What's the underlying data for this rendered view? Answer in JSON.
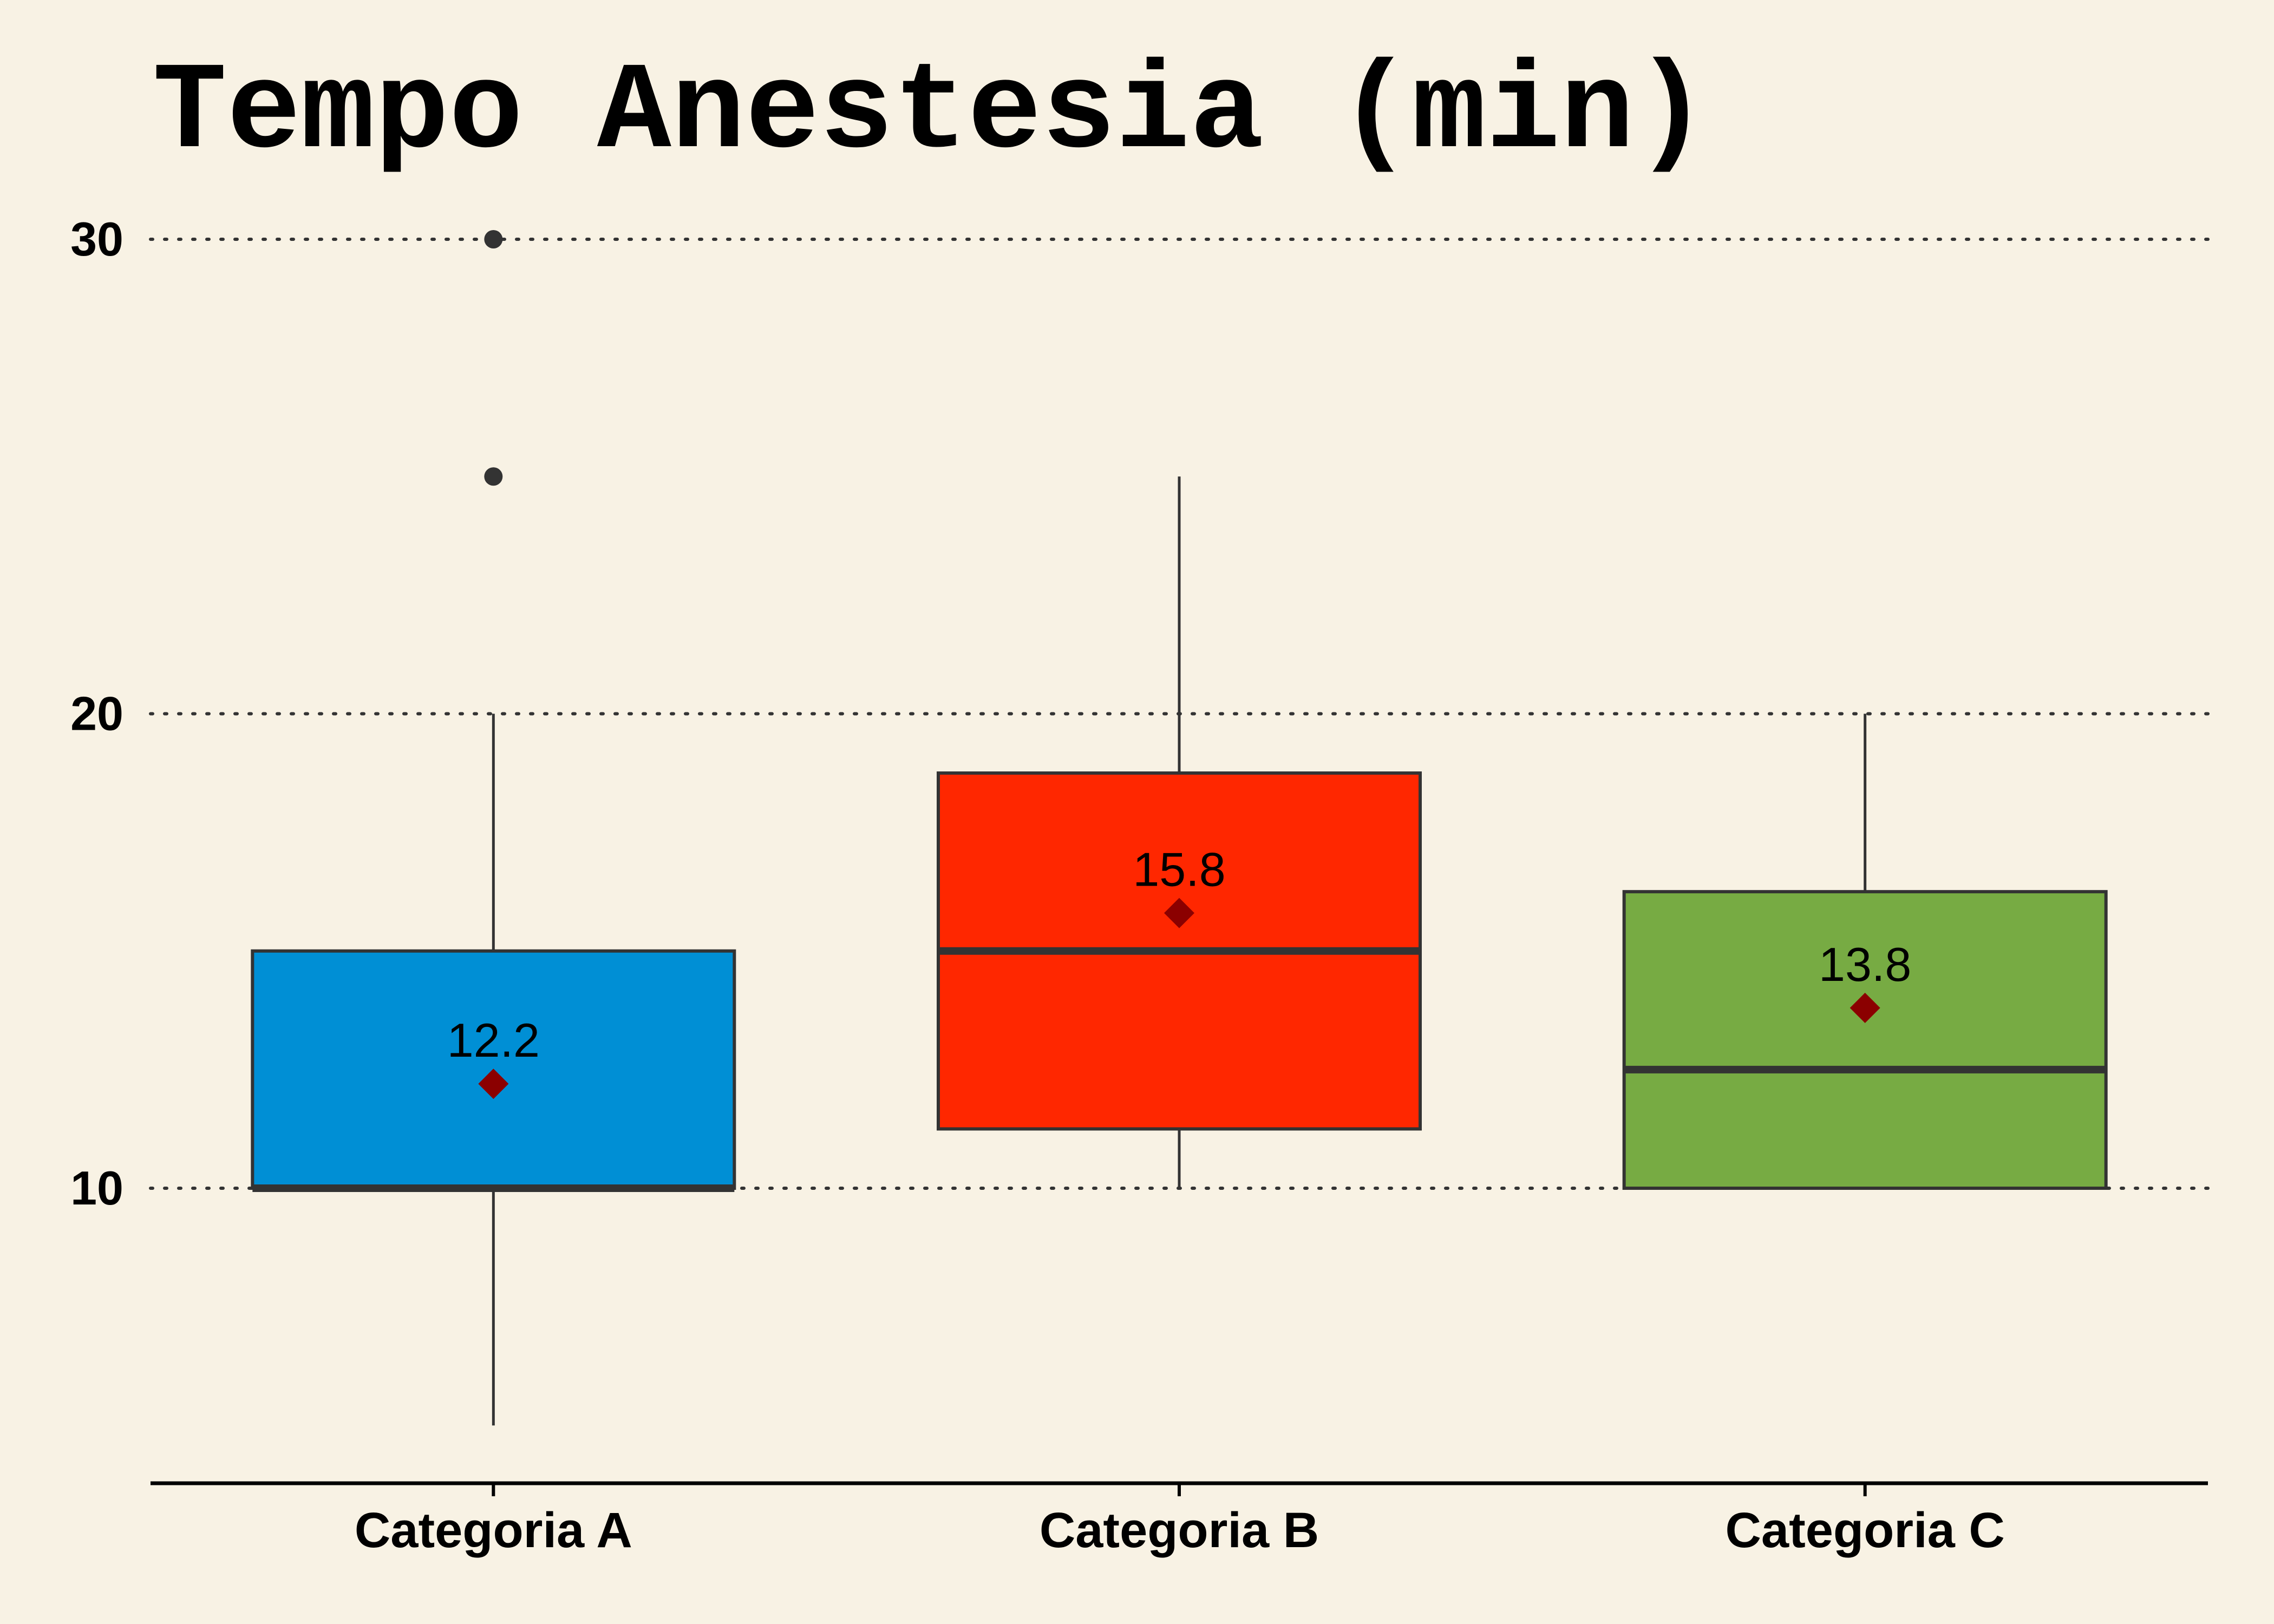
{
  "chart_data": {
    "type": "boxplot",
    "title": "Tempo Anestesia (min)",
    "xlabel": "",
    "ylabel": "",
    "ylim": [
      3.8,
      31.9
    ],
    "yticks": [
      10,
      20,
      30
    ],
    "grid": "horizontal dotted",
    "legend": "none",
    "categories": [
      "Categoria A",
      "Categoria B",
      "Categoria C"
    ],
    "boxes": [
      {
        "category": "Categoria A",
        "whisker_low": 5,
        "q1": 10,
        "median": 10,
        "q3": 15,
        "whisker_high": 20,
        "mean": 12.2,
        "mean_label": "12.2",
        "outliers": [
          25,
          30
        ],
        "color": "#008fd5"
      },
      {
        "category": "Categoria B",
        "whisker_low": 10,
        "q1": 11.25,
        "median": 15,
        "q3": 18.75,
        "whisker_high": 25,
        "mean": 15.8,
        "mean_label": "15.8",
        "outliers": [],
        "color": "#ff2700"
      },
      {
        "category": "Categoria C",
        "whisker_low": 10,
        "q1": 10,
        "median": 12.5,
        "q3": 16.25,
        "whisker_high": 20,
        "mean": 13.8,
        "mean_label": "13.8",
        "outliers": [],
        "color": "#77ab43"
      }
    ],
    "colors": {
      "background": "#f8f2e4",
      "box_edge": "#333333",
      "mean_marker": "#8b0000",
      "grid": "#333333",
      "axis": "#000000"
    }
  }
}
